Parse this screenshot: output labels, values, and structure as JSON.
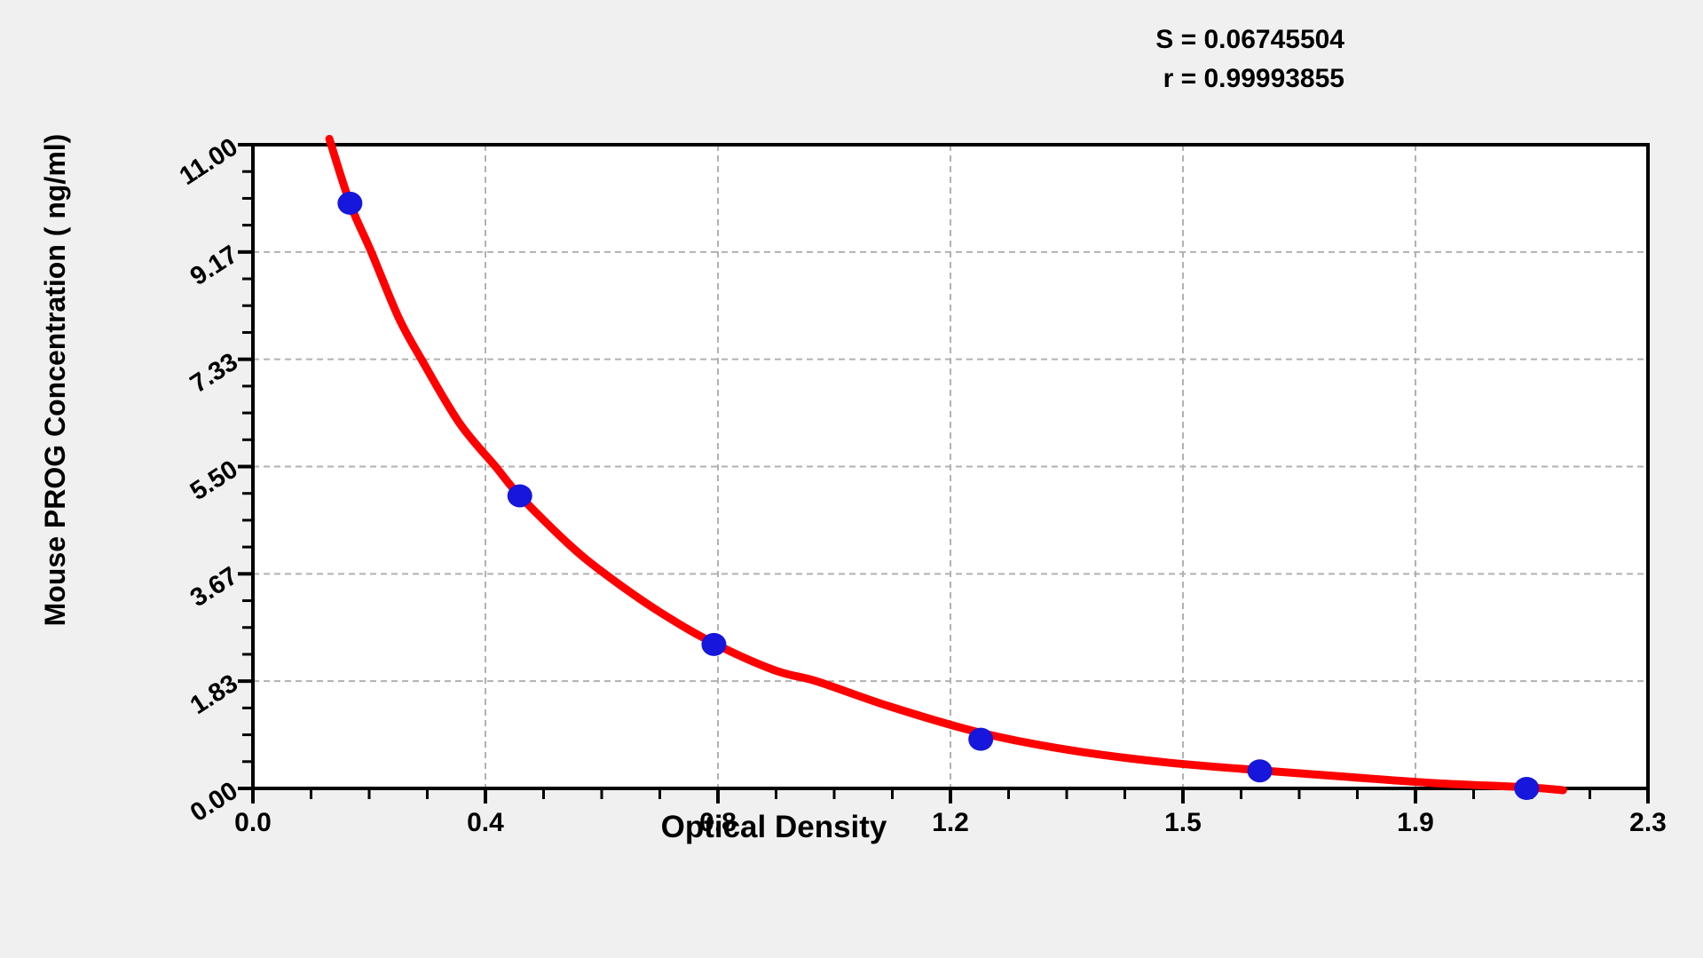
{
  "stats": {
    "s": "S = 0.06745504",
    "r": "r = 0.99993855"
  },
  "chart_data": {
    "type": "scatter",
    "title": "",
    "xlabel": "Optical Density",
    "ylabel": "Mouse PROG Concentration ( ng/ml)",
    "xlim": [
      0.0,
      2.3
    ],
    "ylim": [
      0.0,
      11.0
    ],
    "grid": "dashed at interior major ticks",
    "legend": "none",
    "minor_ticks_per_interval": 3,
    "x_ticks": [
      {
        "value": 0.0,
        "label": "0.0"
      },
      {
        "value": 0.3833,
        "label": "0.4"
      },
      {
        "value": 0.7667,
        "label": "0.8"
      },
      {
        "value": 1.15,
        "label": "1.2"
      },
      {
        "value": 1.5333,
        "label": "1.5"
      },
      {
        "value": 1.9167,
        "label": "1.9"
      },
      {
        "value": 2.3,
        "label": "2.3"
      }
    ],
    "y_ticks": [
      {
        "value": 0.0,
        "label": "0.00"
      },
      {
        "value": 1.8333,
        "label": "1.83"
      },
      {
        "value": 3.6667,
        "label": "3.67"
      },
      {
        "value": 5.5,
        "label": "5.50"
      },
      {
        "value": 7.3333,
        "label": "7.33"
      },
      {
        "value": 9.1667,
        "label": "9.17"
      },
      {
        "value": 11.0,
        "label": "11.00"
      }
    ],
    "points": [
      [
        0.16,
        10.0
      ],
      [
        0.44,
        5.0
      ],
      [
        0.76,
        2.46
      ],
      [
        1.2,
        0.84
      ],
      [
        1.66,
        0.3
      ],
      [
        2.1,
        0.0
      ]
    ],
    "curve_points": [
      [
        0.126,
        11.1
      ],
      [
        0.16,
        10.0
      ],
      [
        0.195,
        9.17
      ],
      [
        0.24,
        8.05
      ],
      [
        0.278,
        7.33
      ],
      [
        0.34,
        6.25
      ],
      [
        0.4,
        5.5
      ],
      [
        0.44,
        5.0
      ],
      [
        0.52,
        4.18
      ],
      [
        0.58,
        3.67
      ],
      [
        0.67,
        3.02
      ],
      [
        0.76,
        2.48
      ],
      [
        0.86,
        2.02
      ],
      [
        0.93,
        1.83
      ],
      [
        1.05,
        1.4
      ],
      [
        1.2,
        0.95
      ],
      [
        1.35,
        0.65
      ],
      [
        1.5,
        0.45
      ],
      [
        1.66,
        0.31
      ],
      [
        1.8,
        0.2
      ],
      [
        1.95,
        0.09
      ],
      [
        2.1,
        0.02
      ],
      [
        2.16,
        -0.03
      ]
    ],
    "colors": {
      "curve": "#ff0000",
      "points": "#1616dc",
      "grid": "#b1b1b1",
      "axis": "#000000",
      "background": "#f0f0f0",
      "plot_background": "#ffffff"
    }
  }
}
